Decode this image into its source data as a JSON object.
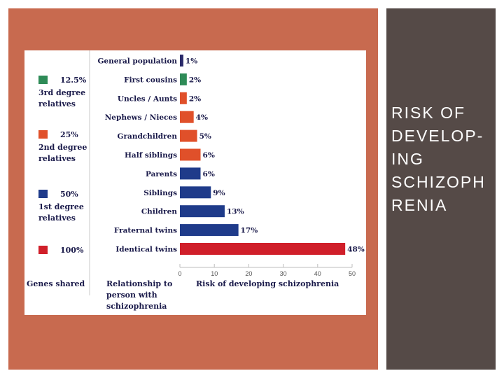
{
  "slide": {
    "title_lines": [
      "RISK OF",
      "DEVELOP-",
      "ING",
      "SCHIZOPH",
      "RENIA"
    ],
    "colors": {
      "left_panel": "#c86a4f",
      "right_panel": "#554a47",
      "title": "#ffffff"
    }
  },
  "legend": {
    "column_label": "Genes shared",
    "items": [
      {
        "percent": "12.5%",
        "line1": "3rd degree",
        "line2": "relatives",
        "color": "#2e8b57"
      },
      {
        "percent": "25%",
        "line1": "2nd degree",
        "line2": "relatives",
        "color": "#e0502a"
      },
      {
        "percent": "50%",
        "line1": "1st degree",
        "line2": "relatives",
        "color": "#1f3b8a"
      },
      {
        "percent": "100%",
        "line1": "",
        "line2": "",
        "color": "#d01f2a"
      }
    ]
  },
  "chart_data": {
    "type": "bar",
    "orientation": "horizontal",
    "title": "",
    "categories": [
      "General population",
      "First cousins",
      "Uncles / Aunts",
      "Nephews / Nieces",
      "Grandchildren",
      "Half siblings",
      "Parents",
      "Siblings",
      "Children",
      "Fraternal twins",
      "Identical twins"
    ],
    "values": [
      1,
      2,
      2,
      4,
      5,
      6,
      6,
      9,
      13,
      17,
      48
    ],
    "value_labels": [
      "1%",
      "2%",
      "2%",
      "4%",
      "5%",
      "6%",
      "6%",
      "9%",
      "13%",
      "17%",
      "48%"
    ],
    "bar_colors": [
      "#2a2a6a",
      "#2e8b57",
      "#e0502a",
      "#e0502a",
      "#e0502a",
      "#e0502a",
      "#1f3b8a",
      "#1f3b8a",
      "#1f3b8a",
      "#1f3b8a",
      "#d01f2a"
    ],
    "xlim": [
      0,
      50
    ],
    "xticks": [
      0,
      10,
      20,
      30,
      40,
      50
    ],
    "xlabel": "Risk of developing schizophrenia",
    "ylabel_lines": [
      "Relationship to",
      "person with",
      "schizophrenia"
    ]
  }
}
